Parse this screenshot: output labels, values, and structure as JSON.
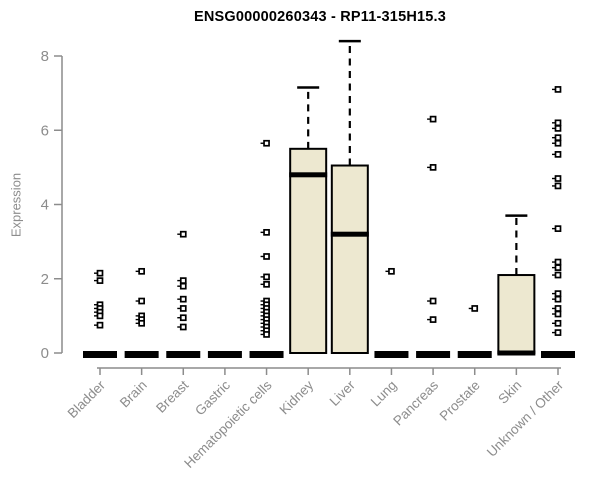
{
  "chart_data": {
    "type": "boxplot",
    "title": "ENSG00000260343 - RP11-315H15.3",
    "ylabel": "Expression",
    "xlabel": "",
    "ylim": [
      0,
      8.6
    ],
    "yticks": [
      0,
      2,
      4,
      6,
      8
    ],
    "grid": false,
    "legend": "none",
    "colors": {
      "box_fill": "#ede8d0",
      "box_stroke": "#000000",
      "point_stroke": "#000000",
      "zero_bar": "#000000",
      "axis": "#8c8c8c",
      "tick_label": "#8c8c8c",
      "title": "#000000"
    },
    "categories": [
      "Bladder",
      "Brain",
      "Breast",
      "Gastric",
      "Hematopoietic cells",
      "Kidney",
      "Liver",
      "Lung",
      "Pancreas",
      "Prostate",
      "Skin",
      "Unknown / Other"
    ],
    "series": [
      {
        "name": "Bladder",
        "box": {
          "q1": 0,
          "median": 0,
          "q3": 0,
          "whisker_low": 0,
          "whisker_high": 0
        },
        "points": [
          2.15,
          1.95,
          1.3,
          1.2,
          1.1,
          1.0,
          0.75
        ]
      },
      {
        "name": "Brain",
        "box": {
          "q1": 0,
          "median": 0,
          "q3": 0,
          "whisker_low": 0,
          "whisker_high": 0
        },
        "points": [
          2.2,
          1.4,
          1.0,
          0.9,
          0.8
        ]
      },
      {
        "name": "Breast",
        "box": {
          "q1": 0,
          "median": 0,
          "q3": 0,
          "whisker_low": 0,
          "whisker_high": 0
        },
        "points": [
          3.2,
          1.95,
          1.8,
          1.45,
          1.2,
          0.95,
          0.7
        ]
      },
      {
        "name": "Gastric",
        "box": {
          "q1": 0,
          "median": 0,
          "q3": 0,
          "whisker_low": 0,
          "whisker_high": 0
        },
        "points": []
      },
      {
        "name": "Hematopoietic cells",
        "box": {
          "q1": 0,
          "median": 0,
          "q3": 0,
          "whisker_low": 0,
          "whisker_high": 0
        },
        "points": [
          5.65,
          3.25,
          2.6,
          2.05,
          1.85,
          1.4,
          1.3,
          1.2,
          1.1,
          1.0,
          0.9,
          0.8,
          0.7,
          0.6,
          0.5
        ]
      },
      {
        "name": "Kidney",
        "box": {
          "q1": 0,
          "median": 4.8,
          "q3": 5.5,
          "whisker_low": 0,
          "whisker_high": 7.15
        },
        "points": []
      },
      {
        "name": "Liver",
        "box": {
          "q1": 0,
          "median": 3.2,
          "q3": 5.05,
          "whisker_low": 0,
          "whisker_high": 8.4
        },
        "points": []
      },
      {
        "name": "Lung",
        "box": {
          "q1": 0,
          "median": 0,
          "q3": 0,
          "whisker_low": 0,
          "whisker_high": 0
        },
        "points": [
          2.2
        ]
      },
      {
        "name": "Pancreas",
        "box": {
          "q1": 0,
          "median": 0,
          "q3": 0,
          "whisker_low": 0,
          "whisker_high": 0
        },
        "points": [
          6.3,
          5.0,
          1.4,
          0.9
        ]
      },
      {
        "name": "Prostate",
        "box": {
          "q1": 0,
          "median": 0,
          "q3": 0,
          "whisker_low": 0,
          "whisker_high": 0
        },
        "points": [
          1.2
        ]
      },
      {
        "name": "Skin",
        "box": {
          "q1": 0,
          "median": 0,
          "q3": 2.1,
          "whisker_low": 0,
          "whisker_high": 3.7
        },
        "points": []
      },
      {
        "name": "Unknown / Other",
        "box": {
          "q1": 0,
          "median": 0,
          "q3": 0,
          "whisker_low": 0,
          "whisker_high": 0
        },
        "points": [
          7.1,
          6.2,
          6.05,
          5.8,
          5.65,
          5.35,
          4.7,
          4.5,
          3.35,
          2.45,
          2.3,
          2.1,
          1.6,
          1.45,
          1.2,
          1.05,
          0.8,
          0.55
        ]
      }
    ]
  }
}
